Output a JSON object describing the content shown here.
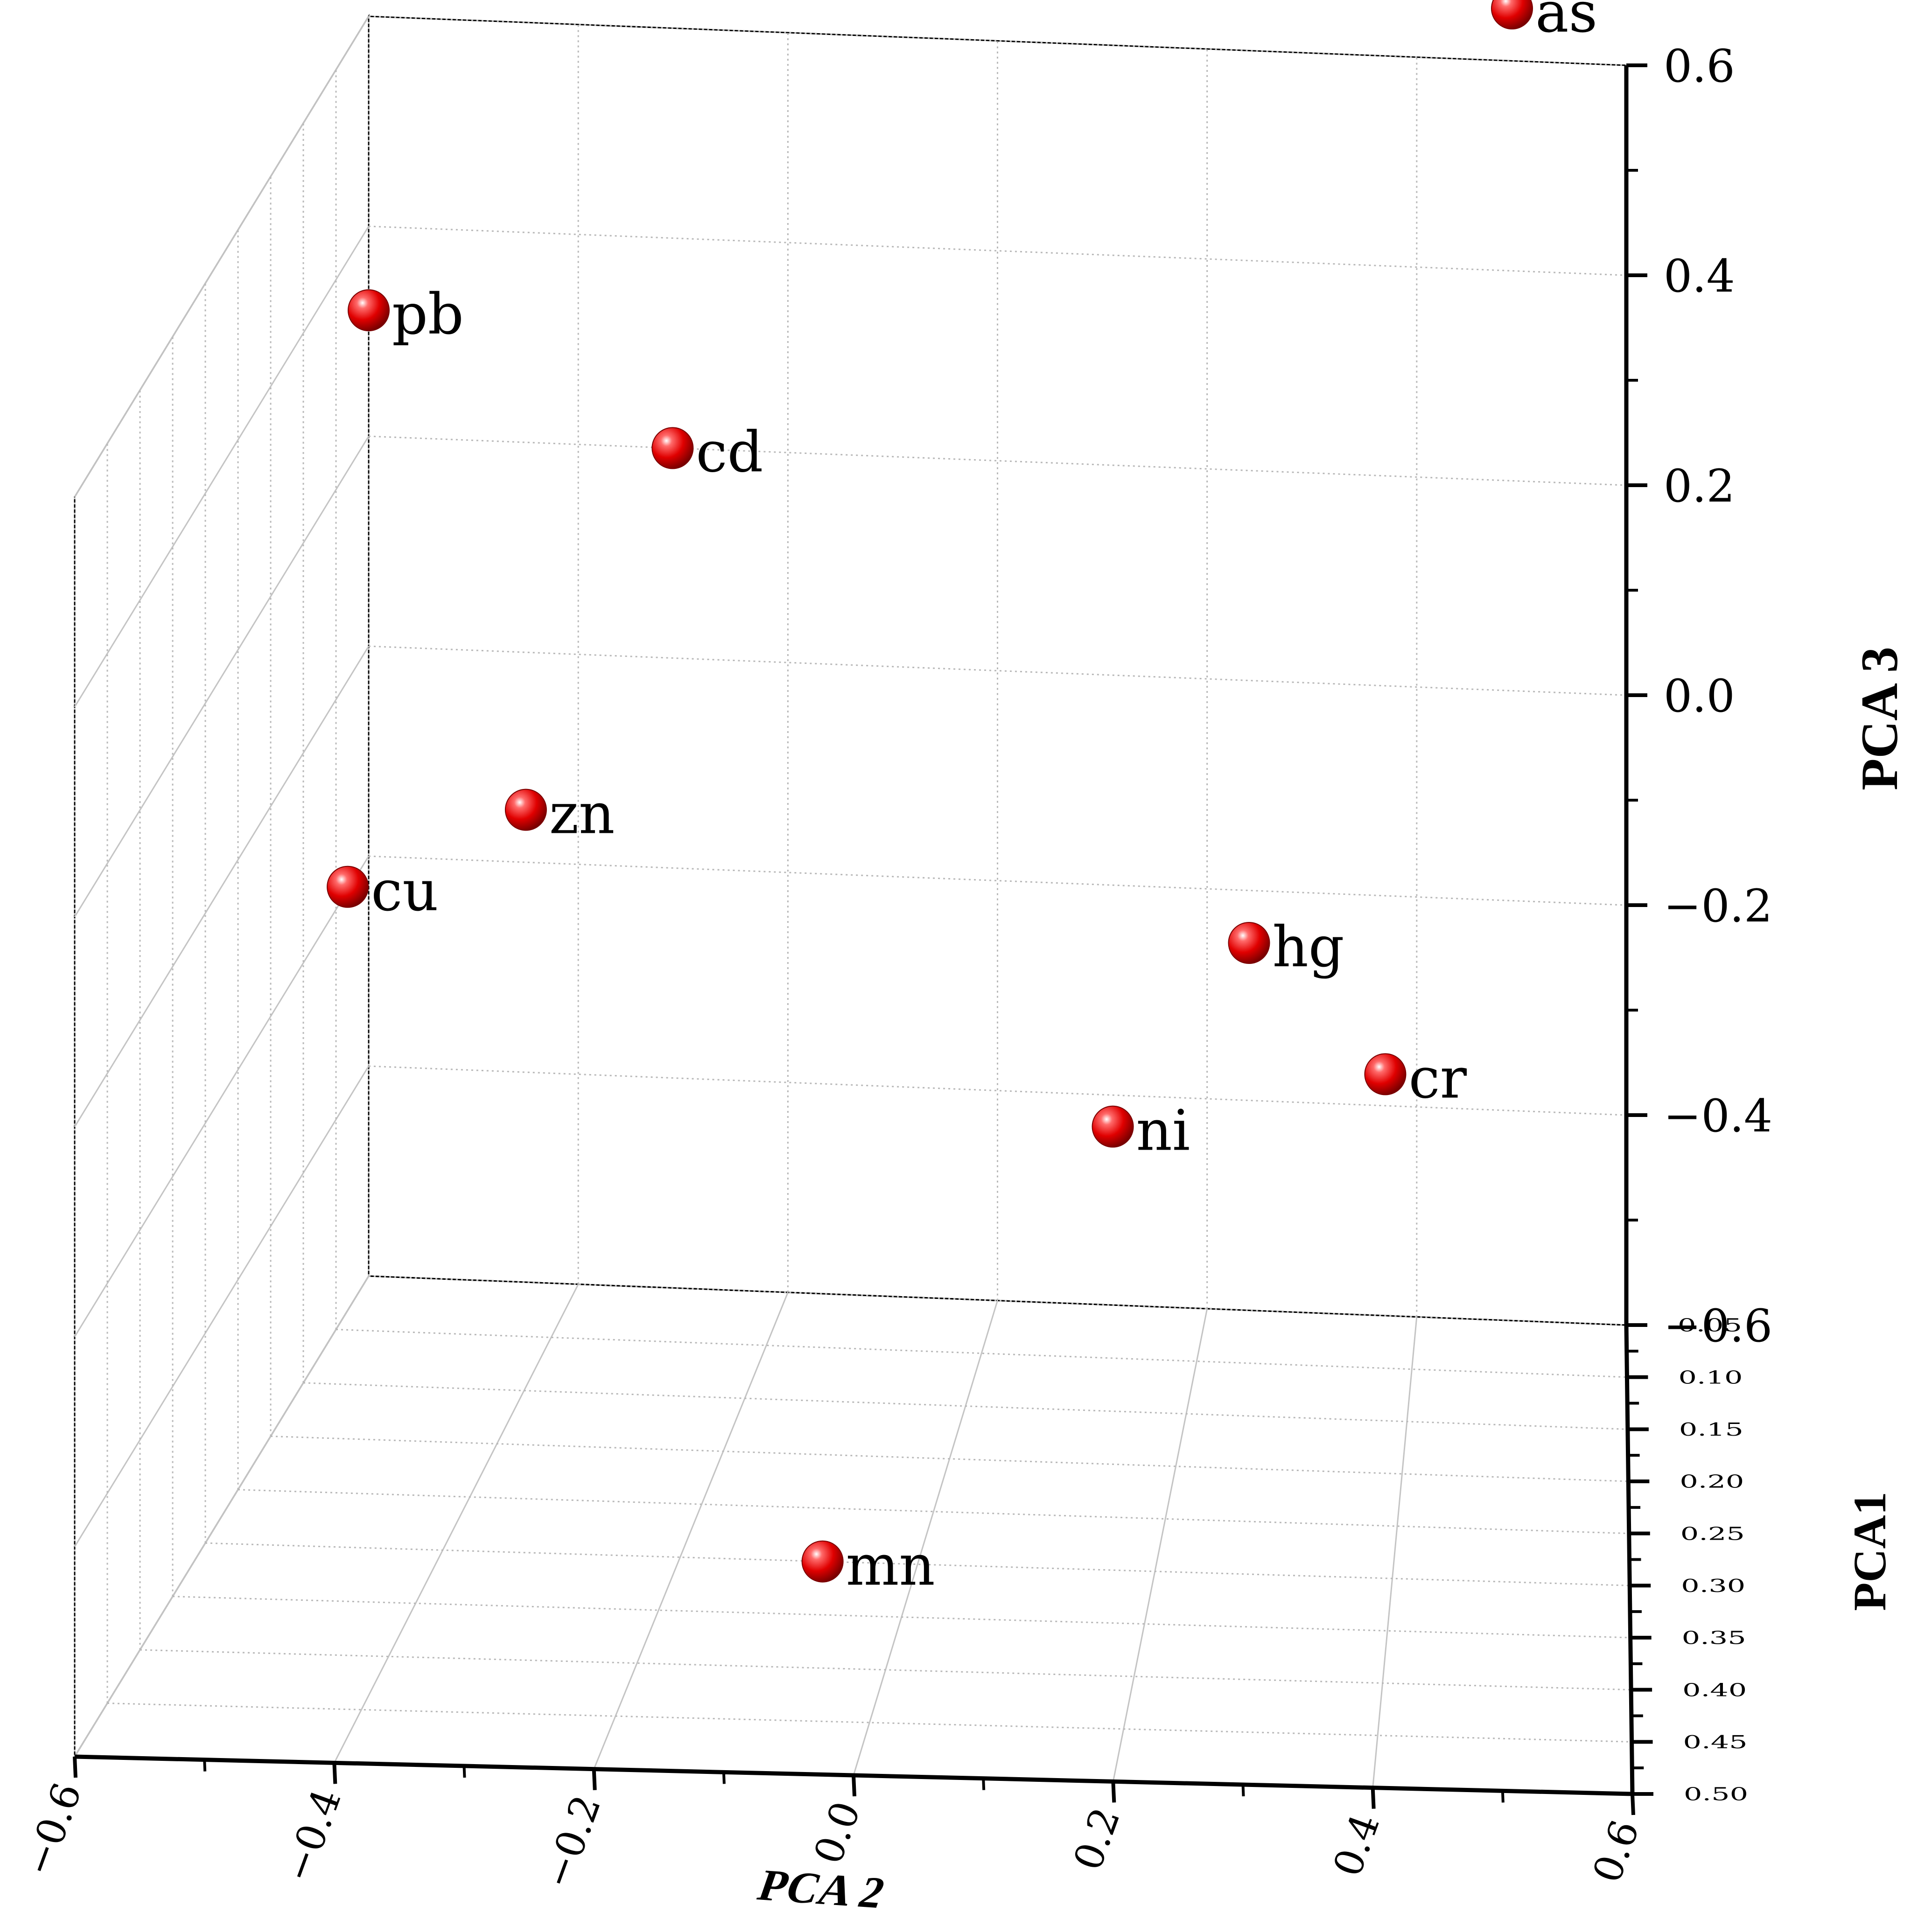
{
  "chart_data": {
    "type": "scatter",
    "dimensions": 3,
    "axes": {
      "x": {
        "title": "PCA 2",
        "range": [
          -0.6,
          0.6
        ],
        "ticks": [
          -0.6,
          -0.4,
          -0.2,
          0.0,
          0.2,
          0.4,
          0.6
        ],
        "tick_labels": [
          "−0.6",
          "−0.4",
          "−0.2",
          "0.0",
          "0.2",
          "0.4",
          "0.6"
        ]
      },
      "y": {
        "title": "PCA1",
        "range": [
          0.05,
          0.5
        ],
        "ticks": [
          0.05,
          0.1,
          0.15,
          0.2,
          0.25,
          0.3,
          0.35,
          0.4,
          0.45,
          0.5
        ],
        "tick_labels": [
          "0.05",
          "0.10",
          "0.15",
          "0.20",
          "0.25",
          "0.30",
          "0.35",
          "0.40",
          "0.45",
          "0.50"
        ]
      },
      "z": {
        "title": "PCA 3",
        "range": [
          -0.6,
          0.6
        ],
        "ticks": [
          -0.6,
          -0.4,
          -0.2,
          0.0,
          0.2,
          0.4,
          0.6
        ],
        "tick_labels": [
          "−0.6",
          "−0.4",
          "−0.2",
          "0.0",
          "0.2",
          "0.4",
          "0.6"
        ]
      }
    },
    "points": [
      {
        "label": "as",
        "pca2": 0.49,
        "pca1": 0.03,
        "pca3": 0.63
      },
      {
        "label": "pb",
        "pca2": -0.6,
        "pca1": 0.05,
        "pca3": 0.32
      },
      {
        "label": "cd",
        "pca2": -0.31,
        "pca1": 0.05,
        "pca3": 0.2
      },
      {
        "label": "zn",
        "pca2": -0.45,
        "pca1": 0.05,
        "pca3": -0.15
      },
      {
        "label": "cu",
        "pca2": -0.62,
        "pca1": 0.05,
        "pca3": -0.23
      },
      {
        "label": "hg",
        "pca2": 0.24,
        "pca1": 0.05,
        "pca3": -0.25
      },
      {
        "label": "cr",
        "pca2": 0.37,
        "pca1": 0.05,
        "pca3": -0.37
      },
      {
        "label": "ni",
        "pca2": 0.11,
        "pca1": 0.05,
        "pca3": -0.43
      },
      {
        "label": "mn",
        "pca2": -0.08,
        "pca1": 0.3,
        "pca3": -0.6
      }
    ],
    "marker_color": "#e00000",
    "grid": true,
    "legend": "none"
  }
}
